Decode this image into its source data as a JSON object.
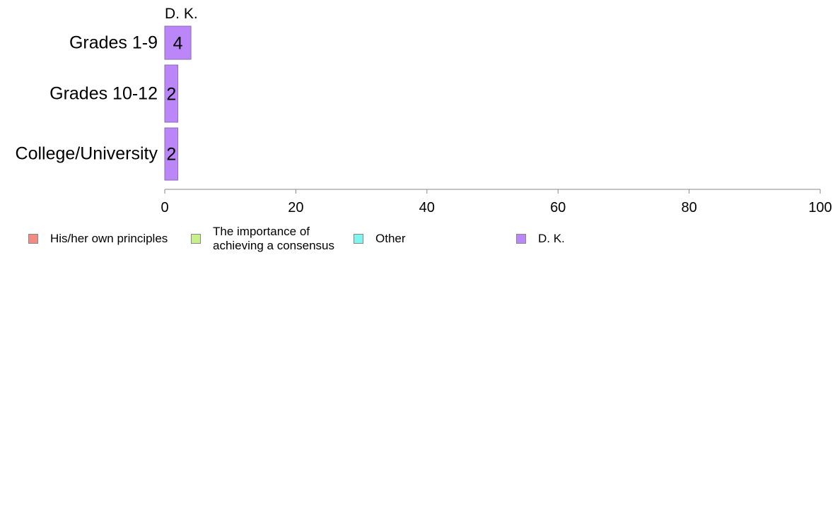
{
  "chart_data": {
    "type": "bar",
    "orientation": "horizontal",
    "stacked": true,
    "header": "D. K.",
    "categories": [
      "Grades 1-9",
      "Grades 10-12",
      "College/University"
    ],
    "xlim": [
      0,
      100
    ],
    "xticks": [
      0,
      20,
      40,
      60,
      80,
      100
    ],
    "series": [
      {
        "name": "His/her own principles",
        "color": "#f28b82",
        "values": [
          0,
          0,
          0
        ]
      },
      {
        "name": "The importance of achieving a consensus",
        "color": "#c8f08a",
        "values": [
          0,
          0,
          0
        ]
      },
      {
        "name": "Other",
        "color": "#7ff5f0",
        "values": [
          0,
          0,
          0
        ]
      },
      {
        "name": "D. K.",
        "color": "#bb86f7",
        "values": [
          4,
          2,
          2
        ],
        "labels": [
          "4",
          "2",
          "2"
        ]
      }
    ],
    "legend_position": "bottom",
    "grid": false
  },
  "legend": [
    {
      "label": "His/her own principles",
      "color": "#f28b82"
    },
    {
      "label": "The importance of achieving a consensus",
      "color": "#c8f08a"
    },
    {
      "label": "Other",
      "color": "#7ff5f0"
    },
    {
      "label": "D. K.",
      "color": "#bb86f7"
    }
  ]
}
